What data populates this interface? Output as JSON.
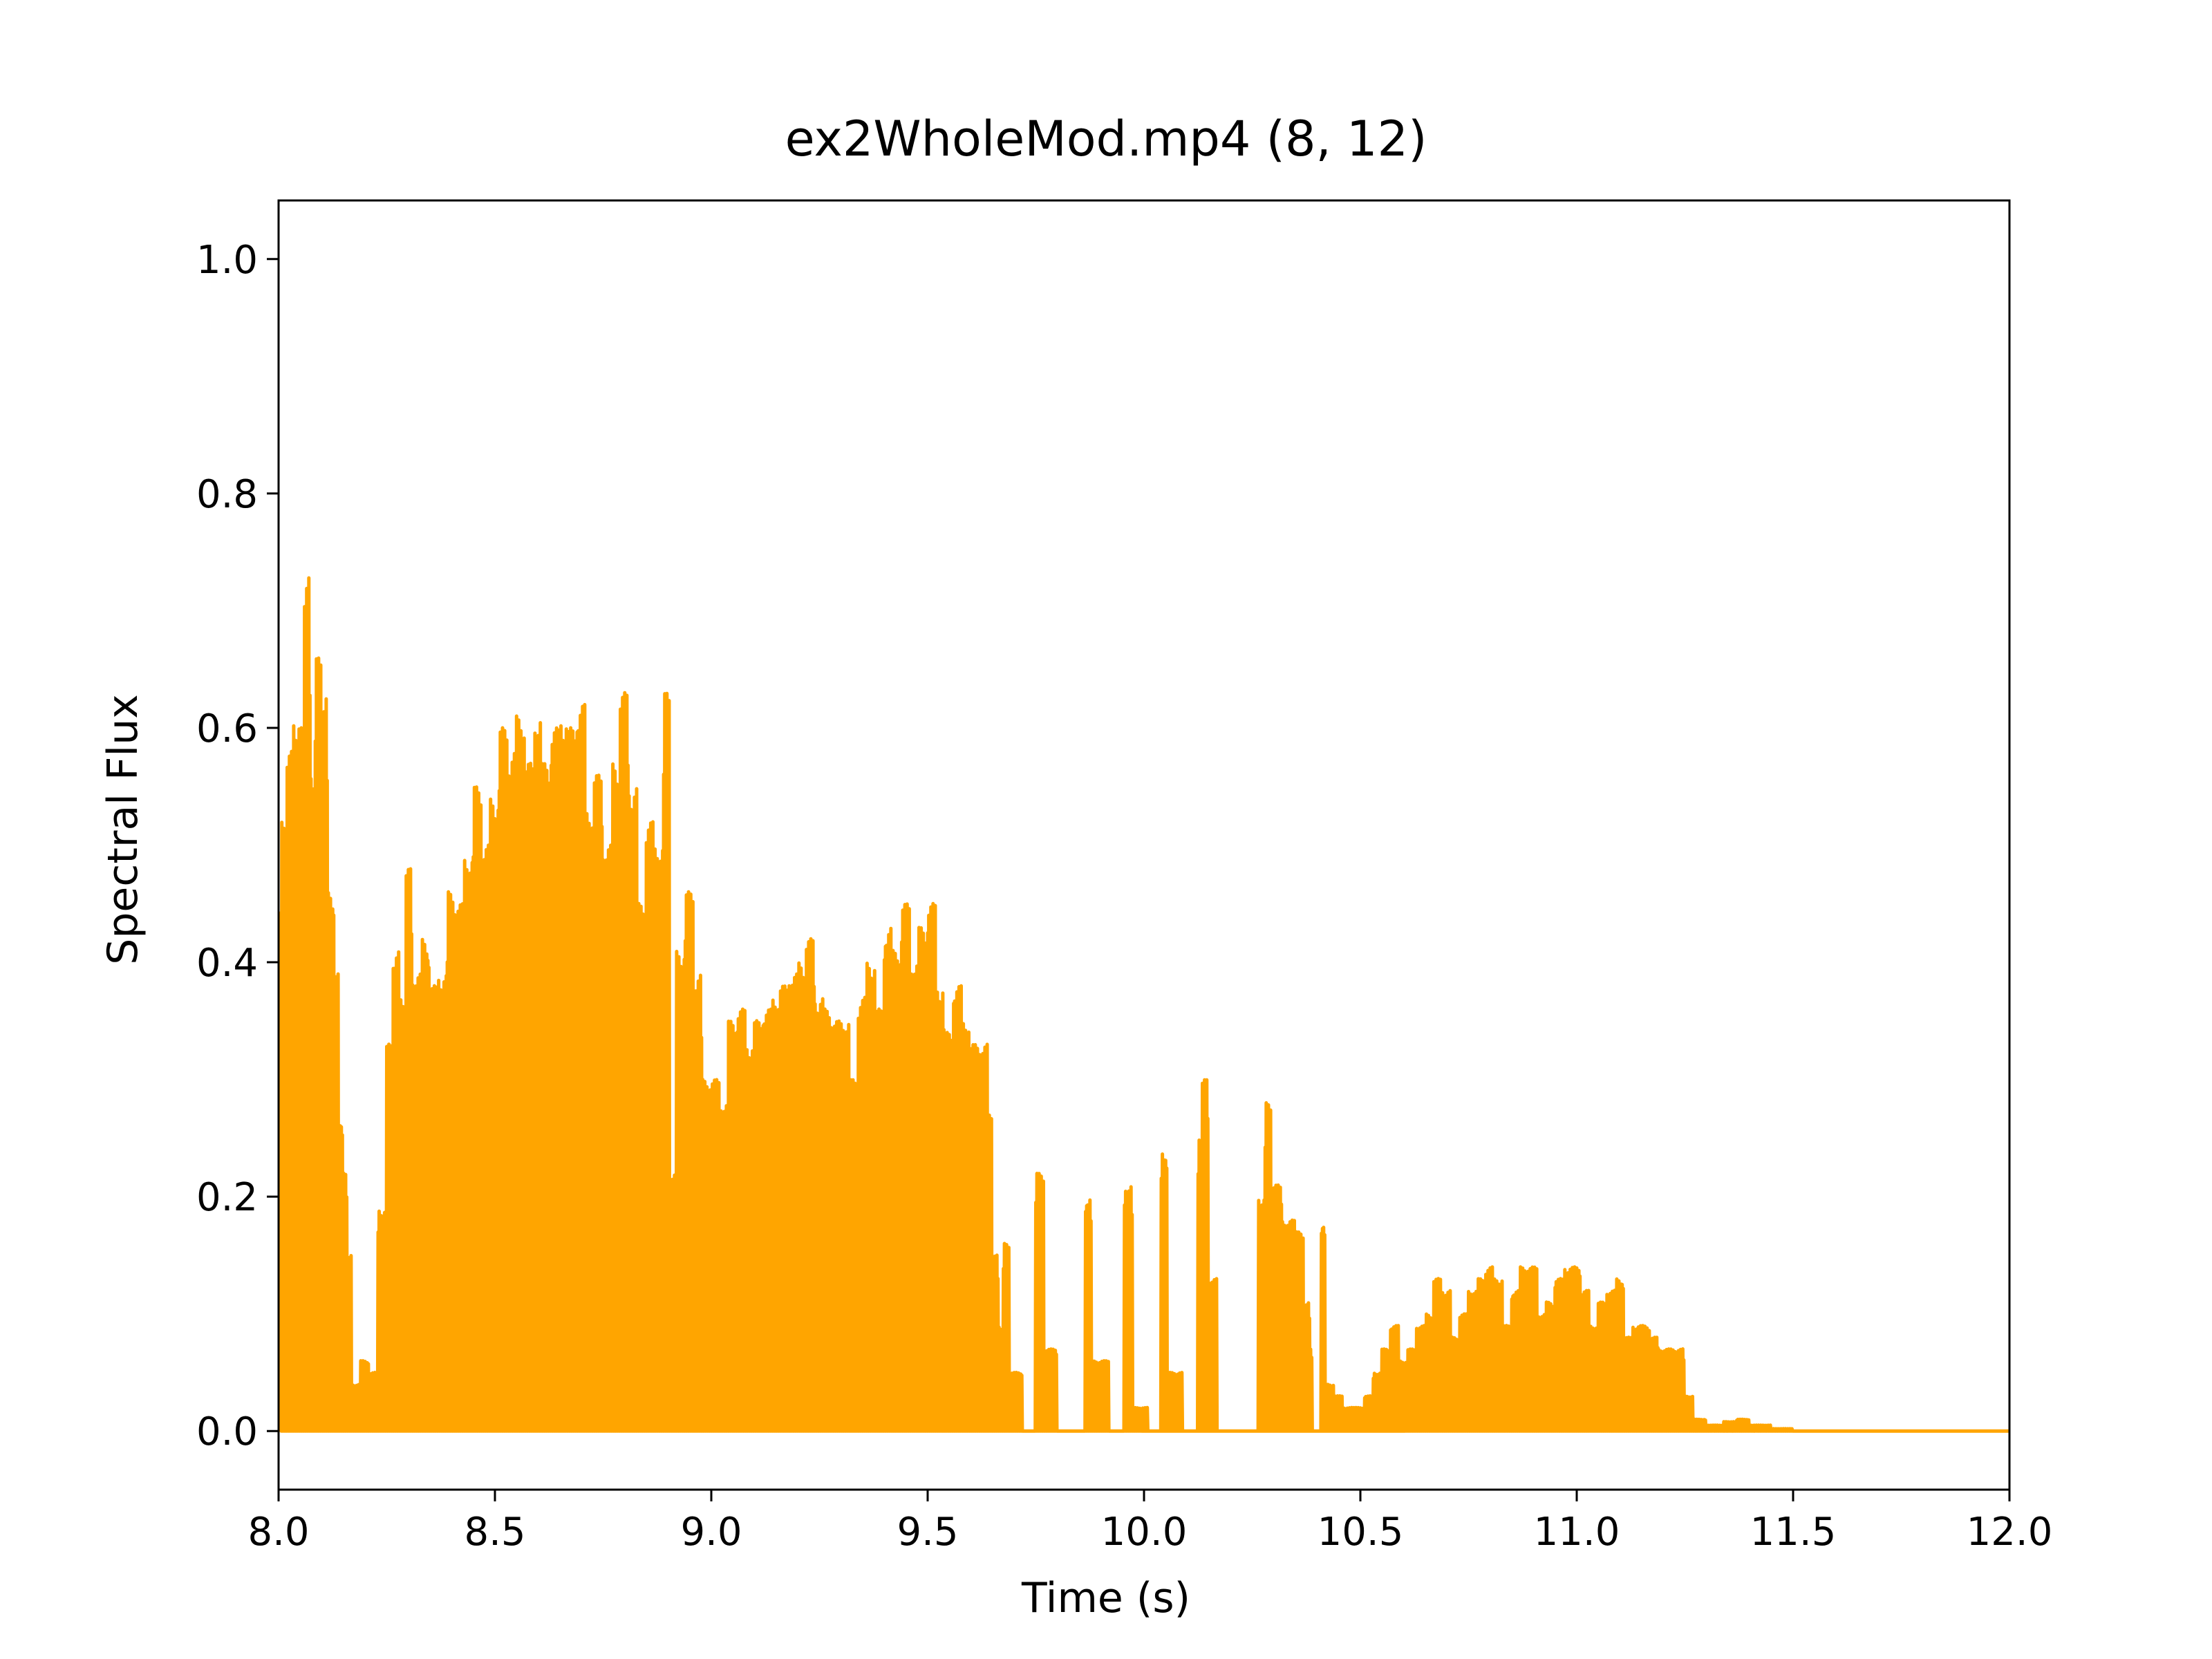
{
  "chart_data": {
    "type": "line",
    "title": "ex2WholeMod.mp4 (8, 12)",
    "xlabel": "Time (s)",
    "ylabel": "Spectral Flux",
    "xlim": [
      8.0,
      12.0
    ],
    "ylim": [
      -0.05,
      1.05
    ],
    "xticks": [
      8.0,
      8.5,
      9.0,
      9.5,
      10.0,
      10.5,
      11.0,
      11.5,
      12.0
    ],
    "xtick_labels": [
      "8.0",
      "8.5",
      "9.0",
      "9.5",
      "10.0",
      "10.5",
      "11.0",
      "11.5",
      "12.0"
    ],
    "yticks": [
      0.0,
      0.2,
      0.4,
      0.6,
      0.8,
      1.0
    ],
    "ytick_labels": [
      "0.0",
      "0.2",
      "0.4",
      "0.6",
      "0.8",
      "1.0"
    ],
    "grid": false,
    "legend": "none",
    "series": [
      {
        "color": "#FFA500",
        "peaks": [
          [
            8.005,
            0.52
          ],
          [
            8.02,
            0.58
          ],
          [
            8.035,
            0.61
          ],
          [
            8.05,
            0.6
          ],
          [
            8.06,
            0.73
          ],
          [
            8.075,
            0.56
          ],
          [
            8.085,
            0.66
          ],
          [
            8.1,
            0.63
          ],
          [
            8.115,
            0.46
          ],
          [
            8.13,
            0.39
          ],
          [
            8.14,
            0.27
          ],
          [
            8.15,
            0.22
          ],
          [
            8.16,
            0.15
          ],
          [
            8.17,
            0.04
          ],
          [
            8.19,
            0.06
          ],
          [
            8.21,
            0.05
          ],
          [
            8.23,
            0.19
          ],
          [
            8.25,
            0.33
          ],
          [
            8.265,
            0.41
          ],
          [
            8.28,
            0.37
          ],
          [
            8.295,
            0.48
          ],
          [
            8.31,
            0.39
          ],
          [
            8.33,
            0.42
          ],
          [
            8.35,
            0.38
          ],
          [
            8.37,
            0.39
          ],
          [
            8.39,
            0.46
          ],
          [
            8.41,
            0.45
          ],
          [
            8.43,
            0.49
          ],
          [
            8.45,
            0.55
          ],
          [
            8.47,
            0.5
          ],
          [
            8.49,
            0.54
          ],
          [
            8.51,
            0.6
          ],
          [
            8.53,
            0.58
          ],
          [
            8.55,
            0.61
          ],
          [
            8.57,
            0.57
          ],
          [
            8.59,
            0.61
          ],
          [
            8.61,
            0.57
          ],
          [
            8.63,
            0.6
          ],
          [
            8.65,
            0.61
          ],
          [
            8.67,
            0.6
          ],
          [
            8.69,
            0.62
          ],
          [
            8.71,
            0.53
          ],
          [
            8.73,
            0.56
          ],
          [
            8.75,
            0.5
          ],
          [
            8.77,
            0.57
          ],
          [
            8.79,
            0.63
          ],
          [
            8.81,
            0.55
          ],
          [
            8.83,
            0.45
          ],
          [
            8.85,
            0.52
          ],
          [
            8.87,
            0.5
          ],
          [
            8.89,
            0.63
          ],
          [
            8.905,
            0.22
          ],
          [
            8.92,
            0.41
          ],
          [
            8.94,
            0.46
          ],
          [
            8.96,
            0.39
          ],
          [
            8.98,
            0.3
          ],
          [
            9.0,
            0.3
          ],
          [
            9.02,
            0.28
          ],
          [
            9.04,
            0.35
          ],
          [
            9.06,
            0.36
          ],
          [
            9.08,
            0.33
          ],
          [
            9.1,
            0.35
          ],
          [
            9.12,
            0.36
          ],
          [
            9.14,
            0.37
          ],
          [
            9.16,
            0.38
          ],
          [
            9.18,
            0.39
          ],
          [
            9.2,
            0.4
          ],
          [
            9.22,
            0.42
          ],
          [
            9.24,
            0.37
          ],
          [
            9.26,
            0.36
          ],
          [
            9.28,
            0.35
          ],
          [
            9.3,
            0.35
          ],
          [
            9.32,
            0.3
          ],
          [
            9.34,
            0.37
          ],
          [
            9.36,
            0.4
          ],
          [
            9.38,
            0.36
          ],
          [
            9.4,
            0.43
          ],
          [
            9.42,
            0.41
          ],
          [
            9.44,
            0.45
          ],
          [
            9.46,
            0.4
          ],
          [
            9.48,
            0.43
          ],
          [
            9.5,
            0.45
          ],
          [
            9.52,
            0.38
          ],
          [
            9.54,
            0.34
          ],
          [
            9.56,
            0.38
          ],
          [
            9.58,
            0.35
          ],
          [
            9.6,
            0.33
          ],
          [
            9.62,
            0.33
          ],
          [
            9.64,
            0.27
          ],
          [
            9.65,
            0.15
          ],
          [
            9.665,
            0.09
          ],
          [
            9.675,
            0.16
          ],
          [
            9.69,
            0.05
          ],
          [
            9.72,
            0.0
          ],
          [
            9.75,
            0.22
          ],
          [
            9.77,
            0.07
          ],
          [
            9.8,
            0.0
          ],
          [
            9.85,
            0.0
          ],
          [
            9.865,
            0.2
          ],
          [
            9.88,
            0.06
          ],
          [
            9.92,
            0.0
          ],
          [
            9.955,
            0.21
          ],
          [
            9.975,
            0.02
          ],
          [
            10.01,
            0.0
          ],
          [
            10.04,
            0.24
          ],
          [
            10.055,
            0.05
          ],
          [
            10.09,
            0.0
          ],
          [
            10.125,
            0.25
          ],
          [
            10.135,
            0.3
          ],
          [
            10.15,
            0.13
          ],
          [
            10.17,
            0.0
          ],
          [
            10.25,
            0.0
          ],
          [
            10.265,
            0.2
          ],
          [
            10.28,
            0.28
          ],
          [
            10.295,
            0.21
          ],
          [
            10.32,
            0.18
          ],
          [
            10.35,
            0.17
          ],
          [
            10.37,
            0.11
          ],
          [
            10.385,
            0.07
          ],
          [
            10.39,
            0.0
          ],
          [
            10.41,
            0.18
          ],
          [
            10.42,
            0.04
          ],
          [
            10.44,
            0.03
          ],
          [
            10.46,
            0.02
          ],
          [
            10.49,
            0.02
          ],
          [
            10.51,
            0.03
          ],
          [
            10.53,
            0.05
          ],
          [
            10.55,
            0.07
          ],
          [
            10.57,
            0.09
          ],
          [
            10.59,
            0.06
          ],
          [
            10.61,
            0.07
          ],
          [
            10.63,
            0.09
          ],
          [
            10.65,
            0.1
          ],
          [
            10.67,
            0.13
          ],
          [
            10.69,
            0.12
          ],
          [
            10.71,
            0.08
          ],
          [
            10.73,
            0.1
          ],
          [
            10.75,
            0.12
          ],
          [
            10.77,
            0.13
          ],
          [
            10.79,
            0.14
          ],
          [
            10.81,
            0.13
          ],
          [
            10.83,
            0.09
          ],
          [
            10.85,
            0.12
          ],
          [
            10.87,
            0.14
          ],
          [
            10.89,
            0.14
          ],
          [
            10.91,
            0.1
          ],
          [
            10.93,
            0.11
          ],
          [
            10.95,
            0.13
          ],
          [
            10.97,
            0.14
          ],
          [
            10.99,
            0.14
          ],
          [
            11.01,
            0.12
          ],
          [
            11.03,
            0.09
          ],
          [
            11.05,
            0.11
          ],
          [
            11.07,
            0.12
          ],
          [
            11.09,
            0.13
          ],
          [
            11.11,
            0.08
          ],
          [
            11.13,
            0.09
          ],
          [
            11.15,
            0.09
          ],
          [
            11.17,
            0.08
          ],
          [
            11.19,
            0.07
          ],
          [
            11.21,
            0.07
          ],
          [
            11.23,
            0.07
          ],
          [
            11.25,
            0.03
          ],
          [
            11.27,
            0.01
          ],
          [
            11.3,
            0.005
          ],
          [
            11.34,
            0.008
          ],
          [
            11.37,
            0.01
          ],
          [
            11.4,
            0.005
          ],
          [
            11.45,
            0.002
          ],
          [
            11.5,
            0.0
          ],
          [
            12.0,
            0.0
          ]
        ]
      }
    ]
  }
}
